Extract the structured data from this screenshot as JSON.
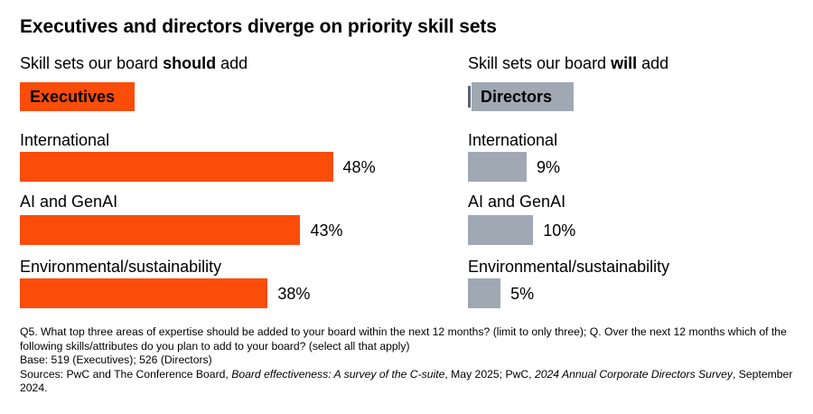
{
  "title": "Executives and directors diverge on priority skill sets",
  "colors": {
    "executives": "#fa4d0a",
    "directors": "#a0a8b3"
  },
  "chart_data": [
    {
      "type": "bar",
      "orientation": "horizontal",
      "subtitle_parts": [
        "Skill sets our board ",
        "should",
        " add"
      ],
      "legend": "Executives",
      "categories": [
        "International",
        "AI and GenAI",
        "Environmental/sustainability"
      ],
      "values": [
        48,
        43,
        38
      ],
      "value_labels": [
        "48%",
        "43%",
        "38%"
      ],
      "unit": "%",
      "xlim": [
        0,
        100
      ],
      "grid": false
    },
    {
      "type": "bar",
      "orientation": "horizontal",
      "subtitle_parts": [
        "Skill sets our board ",
        "will",
        " add"
      ],
      "legend": "Directors",
      "categories": [
        "International",
        "AI and GenAI",
        "Environmental/sustainability"
      ],
      "values": [
        9,
        10,
        5
      ],
      "value_labels": [
        "9%",
        "10%",
        "5%"
      ],
      "unit": "%",
      "xlim": [
        0,
        100
      ],
      "grid": false
    }
  ],
  "notes": {
    "q5": "Q5. What top three areas of expertise should be added to your board within the next 12 months? (limit to only three); Q. Over the next 12 months which of the following skills/attributes do you plan to add to your board? (select all that apply)",
    "base": "Base: 519 (Executives); 526 (Directors)",
    "sources_prefix": "Sources: PwC and The Conference Board, ",
    "sources_title1": "Board effectiveness: A survey of the C-suite",
    "sources_mid": ", May 2025; PwC, ",
    "sources_title2": "2024 Annual Corporate Directors Survey",
    "sources_suffix": ", September 2024."
  }
}
